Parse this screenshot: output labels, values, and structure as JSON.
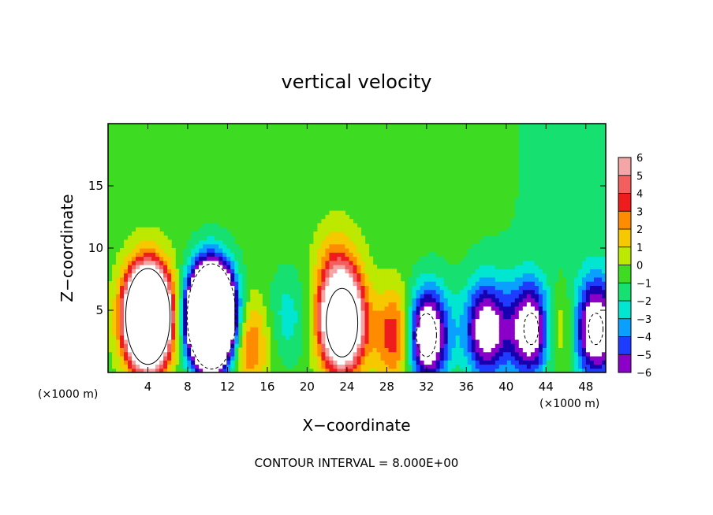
{
  "chart_data": {
    "type": "heatmap",
    "title": "vertical velocity",
    "xlabel": "X−coordinate",
    "ylabel": "Z−coordinate",
    "x_unit_left": "(×1000 m)",
    "x_unit_right": "(×1000 m)",
    "footer": "CONTOUR INTERVAL = 8.000E+00",
    "xlim": [
      0,
      50000
    ],
    "ylim": [
      0,
      20
    ],
    "x_ticks": [
      {
        "value": 4000,
        "label": "4"
      },
      {
        "value": 8000,
        "label": "8"
      },
      {
        "value": 12000,
        "label": "12"
      },
      {
        "value": 16000,
        "label": "16"
      },
      {
        "value": 20000,
        "label": "20"
      },
      {
        "value": 24000,
        "label": "24"
      },
      {
        "value": 28000,
        "label": "28"
      },
      {
        "value": 32000,
        "label": "32"
      },
      {
        "value": 36000,
        "label": "36"
      },
      {
        "value": 40000,
        "label": "40"
      },
      {
        "value": 44000,
        "label": "44"
      },
      {
        "value": 48000,
        "label": "48"
      }
    ],
    "y_ticks": [
      {
        "value": 5,
        "label": "5"
      },
      {
        "value": 10,
        "label": "10"
      },
      {
        "value": 15,
        "label": "15"
      }
    ],
    "colorbar": {
      "levels": [
        {
          "label": "6",
          "color": "#f4a6a6"
        },
        {
          "label": "5",
          "color": "#f35f5f"
        },
        {
          "label": "4",
          "color": "#ee1c1c"
        },
        {
          "label": "3",
          "color": "#ff8c00"
        },
        {
          "label": "2",
          "color": "#f5c800"
        },
        {
          "label": "1",
          "color": "#bde800"
        },
        {
          "label": "0",
          "color": "#3ddc22"
        },
        {
          "label": "−1",
          "color": "#16e070"
        },
        {
          "label": "−2",
          "color": "#00e6d0"
        },
        {
          "label": "−3",
          "color": "#0aa0ff"
        },
        {
          "label": "−4",
          "color": "#1e3cff"
        },
        {
          "label": "−5",
          "color": "#1800b0"
        },
        {
          "label": "−6",
          "color": "#8a00c8"
        }
      ]
    },
    "features": [
      {
        "x": 4000,
        "z": 4.5,
        "w": 24
      },
      {
        "x": 10400,
        "z": 4.5,
        "w": -30
      },
      {
        "x": 14000,
        "z": 2.5,
        "w": 4
      },
      {
        "x": 18000,
        "z": 4.5,
        "w": -2
      },
      {
        "x": 23500,
        "z": 4.0,
        "w": 14
      },
      {
        "x": 23000,
        "z": 8.0,
        "w": 3
      },
      {
        "x": 29000,
        "z": 3.0,
        "w": 5
      },
      {
        "x": 32000,
        "z": 3.0,
        "w": -10
      },
      {
        "x": 38000,
        "z": 3.5,
        "w": -8
      },
      {
        "x": 42500,
        "z": 3.5,
        "w": -9
      },
      {
        "x": 45000,
        "z": 3.5,
        "w": 3
      },
      {
        "x": 49000,
        "z": 3.5,
        "w": -9
      }
    ]
  }
}
